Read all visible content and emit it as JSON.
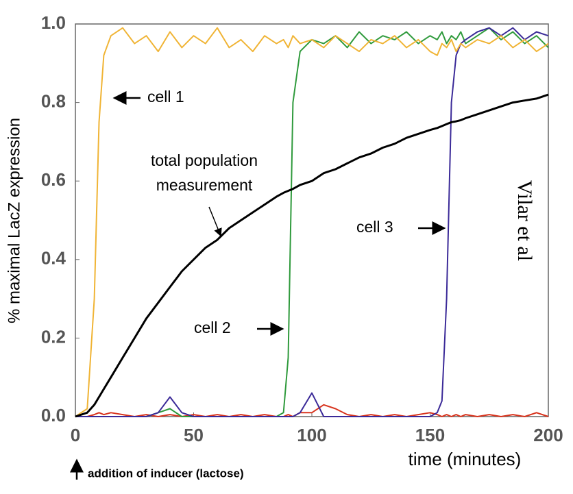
{
  "chart_data": {
    "type": "line",
    "y_label": "% maximal LacZ expression",
    "x_label": "time (minutes)",
    "annotations": [
      "total population",
      "measurement",
      "Vilar et al",
      "addition of inducer (lactose)"
    ],
    "xlim": [
      0,
      200
    ],
    "xticks": [
      0,
      50,
      100,
      150,
      200
    ],
    "ylim": [
      0,
      1
    ],
    "yticks": [
      {
        "value": 0,
        "label": "0.0"
      },
      0.2,
      0.4,
      0.6,
      0.8,
      {
        "value": 1,
        "label": "1.0"
      }
    ],
    "x": [
      0,
      5,
      8,
      10,
      12,
      15,
      20,
      25,
      30,
      35,
      40,
      45,
      50,
      55,
      60,
      65,
      70,
      75,
      80,
      85,
      88,
      90,
      92,
      95,
      100,
      105,
      110,
      115,
      120,
      125,
      130,
      135,
      140,
      145,
      150,
      153,
      155,
      157,
      159,
      161,
      163,
      165,
      170,
      175,
      180,
      185,
      190,
      195,
      200
    ],
    "series": [
      {
        "name": "cell 1",
        "color": "#f0b435",
        "values": [
          0,
          0.02,
          0.3,
          0.75,
          0.92,
          0.97,
          0.99,
          0.95,
          0.97,
          0.93,
          0.98,
          0.94,
          0.97,
          0.95,
          0.99,
          0.94,
          0.96,
          0.93,
          0.97,
          0.95,
          0.96,
          0.94,
          0.97,
          0.95,
          0.96,
          0.94,
          0.97,
          0.95,
          0.93,
          0.96,
          0.95,
          0.97,
          0.94,
          0.96,
          0.93,
          0.92,
          0.95,
          0.94,
          0.96,
          0.93,
          0.95,
          0.94,
          0.96,
          0.95,
          0.97,
          0.94,
          0.96,
          0.93,
          0.95
        ]
      },
      {
        "name": "cell 2",
        "color": "#2f9a3c",
        "values": [
          0,
          0,
          0,
          0,
          0,
          0,
          0,
          0,
          0,
          0.01,
          0.02,
          0,
          0,
          0,
          0,
          0,
          0,
          0,
          0,
          0,
          0.01,
          0.15,
          0.8,
          0.93,
          0.96,
          0.95,
          0.97,
          0.94,
          0.98,
          0.95,
          0.97,
          0.96,
          0.98,
          0.95,
          0.97,
          0.96,
          0.98,
          0.95,
          0.97,
          0.96,
          0.98,
          0.95,
          0.97,
          0.99,
          0.96,
          0.98,
          0.95,
          0.97,
          0.94
        ]
      },
      {
        "name": "cell 3",
        "color": "#3b2a98",
        "values": [
          0,
          0,
          0,
          0,
          0,
          0,
          0,
          0,
          0,
          0.01,
          0.05,
          0.01,
          0,
          0,
          0,
          0,
          0,
          0,
          0,
          0,
          0,
          0,
          0,
          0.01,
          0.06,
          0,
          0,
          0,
          0,
          0,
          0,
          0,
          0,
          0,
          0,
          0.01,
          0.04,
          0.3,
          0.8,
          0.92,
          0.95,
          0.96,
          0.98,
          0.99,
          0.97,
          0.99,
          0.96,
          0.98,
          0.97
        ]
      },
      {
        "color": "#d8341e",
        "values": [
          0,
          0,
          0.005,
          0.01,
          0.005,
          0.01,
          0.005,
          0,
          0.005,
          0,
          0.005,
          0,
          0.005,
          0,
          0.005,
          0,
          0.005,
          0,
          0.005,
          0,
          0,
          0.005,
          0,
          0.01,
          0.01,
          0.03,
          0.02,
          0.005,
          0,
          0.005,
          0,
          0.005,
          0,
          0.005,
          0.01,
          0.005,
          0,
          0.005,
          0,
          0.005,
          0,
          0.005,
          0,
          0.005,
          0,
          0.005,
          0,
          0.01,
          0
        ]
      },
      {
        "color": "#000000",
        "values": [
          0,
          0.01,
          0.03,
          0.05,
          0.07,
          0.1,
          0.15,
          0.2,
          0.25,
          0.29,
          0.33,
          0.37,
          0.4,
          0.43,
          0.45,
          0.48,
          0.5,
          0.52,
          0.54,
          0.56,
          0.57,
          0.575,
          0.58,
          0.59,
          0.6,
          0.62,
          0.63,
          0.645,
          0.66,
          0.67,
          0.685,
          0.695,
          0.71,
          0.72,
          0.73,
          0.735,
          0.74,
          0.745,
          0.75,
          0.752,
          0.755,
          0.76,
          0.77,
          0.78,
          0.79,
          0.8,
          0.805,
          0.81,
          0.82
        ]
      }
    ]
  }
}
